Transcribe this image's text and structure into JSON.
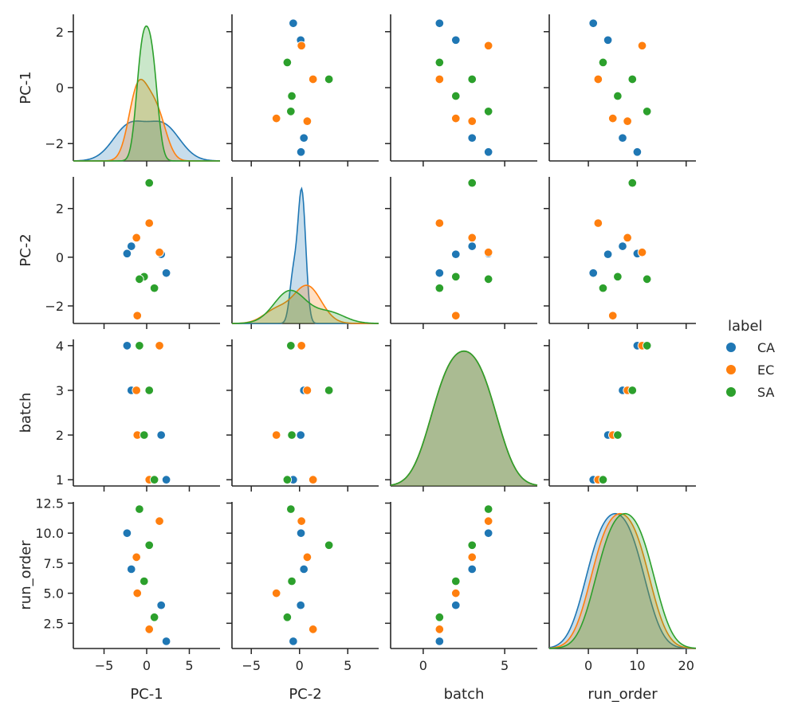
{
  "chart_data": {
    "type": "scatter",
    "variables": [
      "PC-1",
      "PC-2",
      "batch",
      "run_order"
    ],
    "axis_ranges": {
      "PC-1": [
        -8.6,
        8.6
      ],
      "PC-2": [
        -7.0,
        8.2
      ],
      "batch": [
        -2.0,
        7.0
      ],
      "run_order": [
        -8.0,
        22.0
      ]
    },
    "diag_axis_ranges": {
      "PC-1": [
        -2.62,
        2.62
      ],
      "PC-2": [
        -2.72,
        3.3
      ],
      "batch": [
        0.86,
        4.14
      ],
      "run_order": [
        0.4,
        12.6
      ]
    },
    "ticks": {
      "PC-1": [
        {
          "v": -5,
          "label": "−5"
        },
        {
          "v": 0,
          "label": "0"
        },
        {
          "v": 5,
          "label": "5"
        }
      ],
      "PC-2": [
        {
          "v": -5,
          "label": "−5"
        },
        {
          "v": 0,
          "label": "0"
        },
        {
          "v": 5,
          "label": "5"
        }
      ],
      "batch": [
        {
          "v": 0,
          "label": "0"
        },
        {
          "v": 5,
          "label": "5"
        }
      ],
      "run_order": [
        {
          "v": 0,
          "label": "0"
        },
        {
          "v": 10,
          "label": "10"
        },
        {
          "v": 20,
          "label": "20"
        }
      ]
    },
    "row_ticks": {
      "PC-1": [
        {
          "v": 2,
          "label": "2"
        },
        {
          "v": 0,
          "label": "0"
        },
        {
          "v": -2,
          "label": "−2"
        }
      ],
      "PC-2": [
        {
          "v": 2,
          "label": "2"
        },
        {
          "v": 0,
          "label": "0"
        },
        {
          "v": -2,
          "label": "−2"
        }
      ],
      "batch": [
        {
          "v": 4,
          "label": "4"
        },
        {
          "v": 3,
          "label": "3"
        },
        {
          "v": 2,
          "label": "2"
        },
        {
          "v": 1,
          "label": "1"
        }
      ],
      "run_order": [
        {
          "v": 12.5,
          "label": "12.5"
        },
        {
          "v": 10,
          "label": "10.0"
        },
        {
          "v": 7.5,
          "label": "7.5"
        },
        {
          "v": 5,
          "label": "5.0"
        },
        {
          "v": 2.5,
          "label": "2.5"
        }
      ]
    },
    "legend": {
      "title": "label",
      "placement": "right",
      "entries": [
        {
          "name": "CA",
          "color": "#1f77b4"
        },
        {
          "name": "EC",
          "color": "#ff7f0e"
        },
        {
          "name": "SA",
          "color": "#2ca02c"
        }
      ]
    },
    "points": [
      {
        "label": "CA",
        "PC-1": 2.3,
        "PC-2": -0.65,
        "batch": 1,
        "run_order": 1
      },
      {
        "label": "EC",
        "PC-1": 0.3,
        "PC-2": 1.4,
        "batch": 1,
        "run_order": 2
      },
      {
        "label": "SA",
        "PC-1": 0.9,
        "PC-2": -1.27,
        "batch": 1,
        "run_order": 3
      },
      {
        "label": "CA",
        "PC-1": 1.7,
        "PC-2": 0.12,
        "batch": 2,
        "run_order": 4
      },
      {
        "label": "EC",
        "PC-1": -1.1,
        "PC-2": -2.4,
        "batch": 2,
        "run_order": 5
      },
      {
        "label": "SA",
        "PC-1": -0.3,
        "PC-2": -0.8,
        "batch": 2,
        "run_order": 6
      },
      {
        "label": "CA",
        "PC-1": -1.8,
        "PC-2": 0.45,
        "batch": 3,
        "run_order": 7
      },
      {
        "label": "EC",
        "PC-1": -1.2,
        "PC-2": 0.8,
        "batch": 3,
        "run_order": 8
      },
      {
        "label": "SA",
        "PC-1": 0.3,
        "PC-2": 3.05,
        "batch": 3,
        "run_order": 9
      },
      {
        "label": "CA",
        "PC-1": -2.3,
        "PC-2": 0.15,
        "batch": 4,
        "run_order": 10
      },
      {
        "label": "EC",
        "PC-1": 1.5,
        "PC-2": 0.2,
        "batch": 4,
        "run_order": 11
      },
      {
        "label": "SA",
        "PC-1": -0.85,
        "PC-2": -0.9,
        "batch": 4,
        "run_order": 12
      }
    ]
  }
}
